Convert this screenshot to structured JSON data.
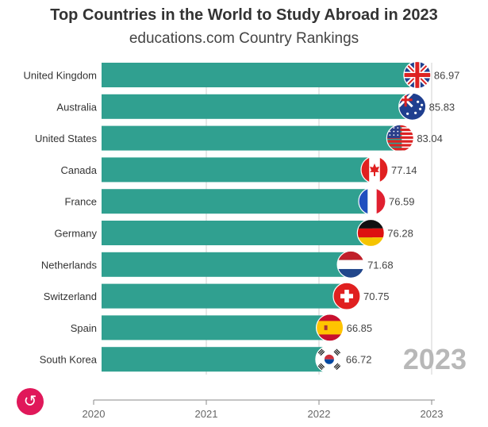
{
  "header": {
    "title": "Top Countries in the World to Study Abroad in 2023",
    "subtitle": "educations.com Country Rankings"
  },
  "year_label": "2023",
  "replay_icon": "replay-icon",
  "colors": {
    "bar": "#30a090",
    "grid": "#d0d0d0",
    "axis": "#888888",
    "year": "#b8b8b8"
  },
  "chart_data": {
    "type": "bar",
    "orientation": "horizontal",
    "title": "Top Countries in the World to Study Abroad in 2023",
    "subtitle": "educations.com Country Rankings",
    "xlabel": "",
    "ylabel": "",
    "x_axis": {
      "type": "time",
      "ticks": [
        "2020",
        "2021",
        "2022",
        "2023"
      ],
      "range": [
        "2020",
        "2023"
      ]
    },
    "grid": true,
    "legend": "none",
    "categories": [
      "United Kingdom",
      "Australia",
      "United States",
      "Canada",
      "France",
      "Germany",
      "Netherlands",
      "Switzerland",
      "Spain",
      "South Korea"
    ],
    "values": [
      86.97,
      85.83,
      83.04,
      77.14,
      76.59,
      76.28,
      71.68,
      70.75,
      66.85,
      66.72
    ],
    "value_labels": [
      "86.97",
      "85.83",
      "83.04",
      "77.14",
      "76.59",
      "76.28",
      "71.68",
      "70.75",
      "66.85",
      "66.72"
    ],
    "flag_icons": [
      "uk-flag-icon",
      "australia-flag-icon",
      "usa-flag-icon",
      "canada-flag-icon",
      "france-flag-icon",
      "germany-flag-icon",
      "netherlands-flag-icon",
      "switzerland-flag-icon",
      "spain-flag-icon",
      "south-korea-flag-icon"
    ]
  }
}
